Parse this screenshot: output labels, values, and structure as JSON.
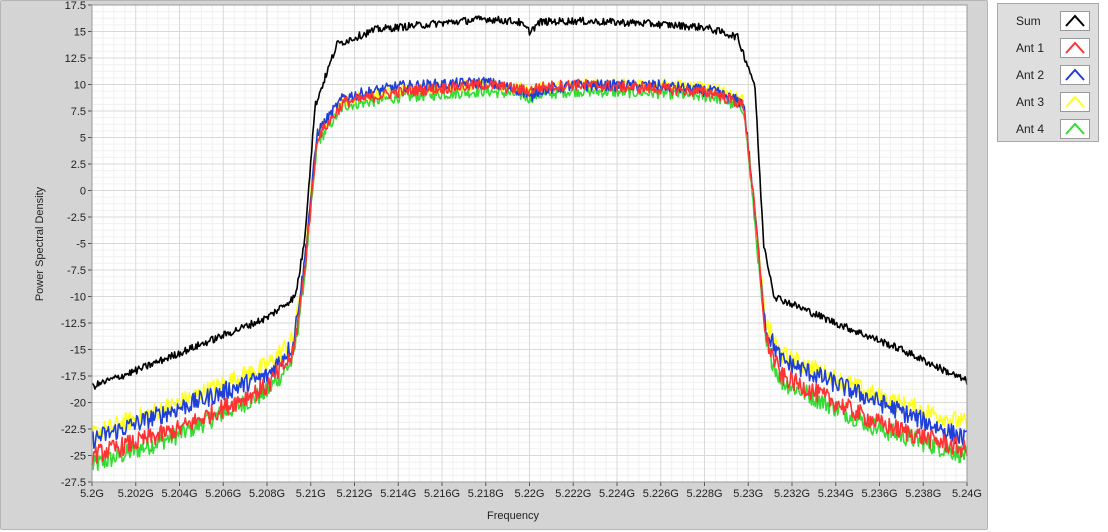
{
  "chart_data": {
    "type": "line",
    "xlabel": "Frequency",
    "ylabel": "Power Spectral Density",
    "xlim": [
      5.2,
      5.24
    ],
    "ylim": [
      -27.5,
      17.5
    ],
    "x_ticks": [
      "5.2G",
      "5.202G",
      "5.204G",
      "5.206G",
      "5.208G",
      "5.21G",
      "5.212G",
      "5.214G",
      "5.216G",
      "5.218G",
      "5.22G",
      "5.222G",
      "5.224G",
      "5.226G",
      "5.228G",
      "5.23G",
      "5.232G",
      "5.234G",
      "5.236G",
      "5.238G",
      "5.24G"
    ],
    "y_ticks": [
      "17.5",
      "15",
      "12.5",
      "10",
      "7.5",
      "5",
      "2.5",
      "0",
      "-2.5",
      "-5",
      "-7.5",
      "-10",
      "-12.5",
      "-15",
      "-17.5",
      "-20",
      "-22.5",
      "-25",
      "-27.5"
    ],
    "grid": true,
    "legend_position": "right",
    "x_unit_ghz": true,
    "series": [
      {
        "name": "Sum",
        "color": "#000000",
        "x": [
          5.2,
          5.202,
          5.205,
          5.208,
          5.2093,
          5.2097,
          5.2102,
          5.2112,
          5.213,
          5.216,
          5.218,
          5.2195,
          5.22,
          5.2205,
          5.222,
          5.225,
          5.228,
          5.2295,
          5.2303,
          5.2307,
          5.2312,
          5.234,
          5.237,
          5.24
        ],
        "y": [
          -18.5,
          -17,
          -14.5,
          -12,
          -10,
          -5,
          8,
          13.8,
          15.2,
          15.8,
          16.2,
          15.9,
          15.0,
          15.9,
          16.0,
          15.8,
          15.4,
          14.5,
          10,
          -5,
          -10,
          -12.5,
          -15,
          -18
        ]
      },
      {
        "name": "Ant 1",
        "color": "#ff3333",
        "x": [
          5.2,
          5.204,
          5.208,
          5.2092,
          5.2097,
          5.2103,
          5.2115,
          5.214,
          5.218,
          5.2197,
          5.22,
          5.2203,
          5.222,
          5.226,
          5.2285,
          5.2298,
          5.2303,
          5.2308,
          5.2315,
          5.236,
          5.24
        ],
        "y": [
          -25,
          -22.5,
          -18.5,
          -15.5,
          -8,
          5,
          8.3,
          9.3,
          10.0,
          9.5,
          9.4,
          9.7,
          10.0,
          9.6,
          9.2,
          8.0,
          -2,
          -14,
          -17.5,
          -22.0,
          -24.5
        ]
      },
      {
        "name": "Ant 2",
        "color": "#1f3fd8",
        "x": [
          5.2,
          5.204,
          5.208,
          5.2092,
          5.2097,
          5.2103,
          5.2115,
          5.214,
          5.218,
          5.2197,
          5.22,
          5.2203,
          5.222,
          5.226,
          5.2285,
          5.2298,
          5.2303,
          5.2308,
          5.2315,
          5.236,
          5.24
        ],
        "y": [
          -23.5,
          -20.5,
          -17.5,
          -14.5,
          -7,
          5.5,
          8.8,
          9.8,
          10.2,
          9.4,
          8.6,
          9.4,
          9.9,
          9.9,
          9.3,
          8.2,
          -2,
          -13,
          -16,
          -20.0,
          -23.5
        ]
      },
      {
        "name": "Ant 3",
        "color": "#ffff22",
        "x": [
          5.2,
          5.204,
          5.208,
          5.2092,
          5.2097,
          5.2103,
          5.2115,
          5.214,
          5.218,
          5.2197,
          5.22,
          5.2203,
          5.222,
          5.226,
          5.2285,
          5.2298,
          5.2303,
          5.2308,
          5.2315,
          5.236,
          5.24
        ],
        "y": [
          -23,
          -20,
          -16.5,
          -14,
          -7,
          5.5,
          8.5,
          9.5,
          10.0,
          9.6,
          9.3,
          9.6,
          10.0,
          10.0,
          9.7,
          8.5,
          -2,
          -12.5,
          -15.5,
          -19.5,
          -22
        ]
      },
      {
        "name": "Ant 4",
        "color": "#33dd33",
        "x": [
          5.2,
          5.204,
          5.208,
          5.2092,
          5.2097,
          5.2103,
          5.2115,
          5.214,
          5.218,
          5.2197,
          5.22,
          5.2203,
          5.222,
          5.226,
          5.2285,
          5.2298,
          5.2303,
          5.2308,
          5.2315,
          5.236,
          5.24
        ],
        "y": [
          -26,
          -23,
          -19,
          -16,
          -8.5,
          4.5,
          8.0,
          8.8,
          9.4,
          9.0,
          8.7,
          9.0,
          9.4,
          9.2,
          8.8,
          7.7,
          -3,
          -14.5,
          -18,
          -22.5,
          -25
        ]
      }
    ]
  },
  "legend": {
    "items": [
      {
        "label": "Sum",
        "color": "#000000"
      },
      {
        "label": "Ant 1",
        "color": "#ff3333"
      },
      {
        "label": "Ant 2",
        "color": "#1f3fd8"
      },
      {
        "label": "Ant 3",
        "color": "#ffff22"
      },
      {
        "label": "Ant 4",
        "color": "#33dd33"
      }
    ]
  }
}
